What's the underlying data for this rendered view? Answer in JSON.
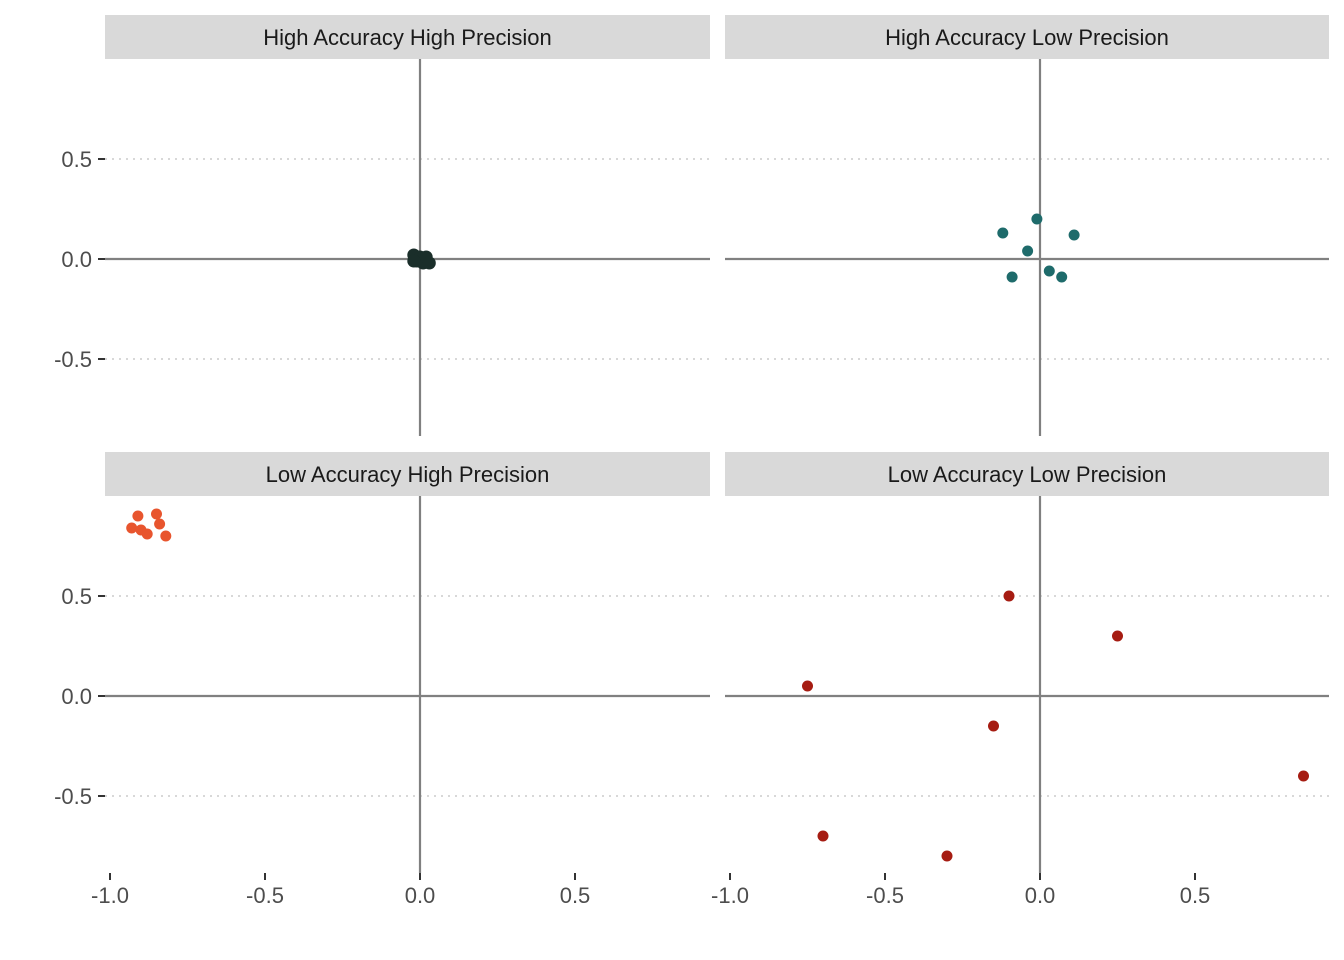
{
  "chart_data": {
    "type": "scatter",
    "layout": "2x2 facet grid",
    "grid": "dotted horizontal major gridlines",
    "reference_lines": "solid lines at x = 0 and y = 0",
    "axes": {
      "x_ticks": [
        "-1.0",
        "-0.5",
        "0.0",
        "0.5"
      ],
      "x_tick_values": [
        -1.0,
        -0.5,
        0.0,
        0.5
      ],
      "y_ticks": [
        "-0.5",
        "0.0",
        "0.5"
      ],
      "y_tick_values": [
        -0.5,
        0.0,
        0.5
      ],
      "xlim": [
        -1.0,
        0.95
      ],
      "ylim": [
        -0.88,
        0.98
      ]
    },
    "panels": [
      {
        "title": "High Accuracy High Precision",
        "color": "#1a2e2a",
        "points": [
          {
            "x": -0.02,
            "y": 0.02
          },
          {
            "x": -0.01,
            "y": -0.01
          },
          {
            "x": 0.0,
            "y": 0.01
          },
          {
            "x": 0.01,
            "y": -0.02
          },
          {
            "x": 0.02,
            "y": 0.01
          },
          {
            "x": 0.03,
            "y": -0.02
          },
          {
            "x": -0.02,
            "y": -0.01
          }
        ]
      },
      {
        "title": "High Accuracy Low Precision",
        "color": "#1e6b6b",
        "points": [
          {
            "x": -0.01,
            "y": 0.2
          },
          {
            "x": -0.12,
            "y": 0.13
          },
          {
            "x": 0.11,
            "y": 0.12
          },
          {
            "x": -0.04,
            "y": 0.04
          },
          {
            "x": 0.03,
            "y": -0.06
          },
          {
            "x": -0.09,
            "y": -0.09
          },
          {
            "x": 0.07,
            "y": -0.09
          }
        ]
      },
      {
        "title": "Low Accuracy High Precision",
        "color": "#e8552e",
        "points": [
          {
            "x": -0.91,
            "y": 0.9
          },
          {
            "x": -0.85,
            "y": 0.91
          },
          {
            "x": -0.93,
            "y": 0.84
          },
          {
            "x": -0.9,
            "y": 0.83
          },
          {
            "x": -0.84,
            "y": 0.86
          },
          {
            "x": -0.88,
            "y": 0.81
          },
          {
            "x": -0.82,
            "y": 0.8
          }
        ]
      },
      {
        "title": "Low Accuracy Low Precision",
        "color": "#a61c12",
        "points": [
          {
            "x": -0.1,
            "y": 0.5
          },
          {
            "x": 0.25,
            "y": 0.3
          },
          {
            "x": -0.75,
            "y": 0.05
          },
          {
            "x": -0.15,
            "y": -0.15
          },
          {
            "x": 0.85,
            "y": -0.4
          },
          {
            "x": -0.7,
            "y": -0.7
          },
          {
            "x": -0.3,
            "y": -0.8
          }
        ]
      }
    ]
  },
  "colors": {
    "strip_background": "#d9d9d9",
    "reference_line": "#808080",
    "grid": "#cccccc",
    "tick_text": "#4d4d4d",
    "strip_text": "#1a1a1a"
  }
}
